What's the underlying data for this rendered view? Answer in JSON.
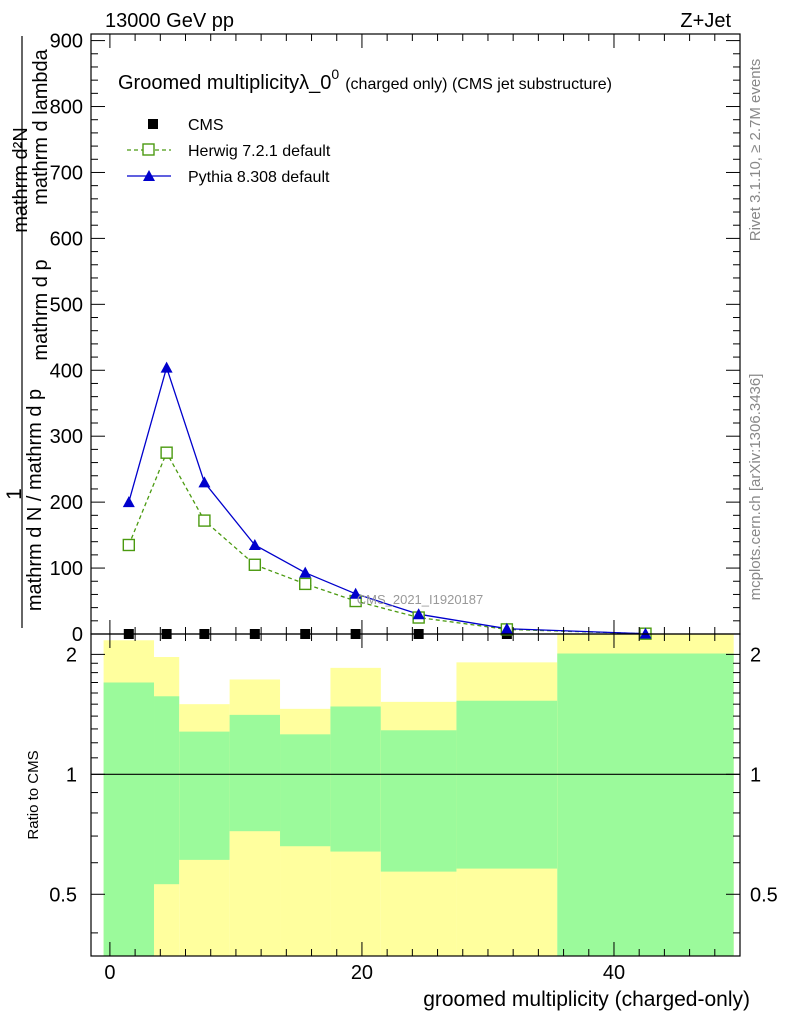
{
  "header": {
    "left_label": "13000 GeV pp",
    "right_label": "Z+Jet"
  },
  "side_labels": {
    "rivet": "Rivet 3.1.10, ≥ 2.7M events",
    "mcplots": "mcplots.cern.ch [arXiv:1306.3436]"
  },
  "chart_data": [
    {
      "type": "line",
      "title": "Groomed multiplicityλ_0",
      "title_superscript": "0",
      "title_suffix": "(charged only) (CMS jet substructure)",
      "watermark": "CMS_2021_I1920187",
      "ylabel_num": "1",
      "ylabel_den_lines": [
        "mathrm d N / mathrm d p",
        "mathrm d p",
        "mathrm d lambda"
      ],
      "ylabel_full": "mathrm d^2N / mathrm d p_T mathrm d lambda (1 / mathrm d N / mathrm d p_T)",
      "ylabel_top": "mathrm d²N",
      "ylabel_mid": "mathrm d p  mathrm d lambda",
      "ylabel_bot": "mathrm d N / mathrm d p  mathrm d p",
      "xlim": [
        -1.5,
        50
      ],
      "ylim": [
        0,
        910
      ],
      "yticks": [
        0,
        100,
        200,
        300,
        400,
        500,
        600,
        700,
        800,
        900
      ],
      "legend_position": "top-left",
      "series": [
        {
          "name": "CMS",
          "color": "#000000",
          "marker": "square-filled",
          "x": [
            1.5,
            4.5,
            7.5,
            11.5,
            15.5,
            19.5,
            24.5,
            31.5,
            42.5
          ],
          "values": [
            0,
            0,
            0,
            0,
            0,
            0,
            0,
            0,
            0
          ]
        },
        {
          "name": "Herwig 7.2.1 default",
          "color": "#4b9a10",
          "marker": "square-open",
          "dashed": true,
          "x": [
            1.5,
            4.5,
            7.5,
            11.5,
            15.5,
            19.5,
            24.5,
            31.5,
            42.5
          ],
          "values": [
            135,
            275,
            172,
            105,
            76,
            50,
            25,
            7,
            0.5
          ]
        },
        {
          "name": "Pythia 8.308 default",
          "color": "#0000cc",
          "marker": "triangle-filled",
          "dashed": false,
          "x": [
            1.5,
            4.5,
            7.5,
            11.5,
            15.5,
            19.5,
            24.5,
            31.5,
            42.5
          ],
          "values": [
            200,
            404,
            230,
            135,
            93,
            61,
            30,
            8,
            0.5
          ]
        }
      ]
    },
    {
      "type": "area",
      "ylabel": "Ratio to CMS",
      "xlabel": "groomed multiplicity (charged-only)",
      "xlim": [
        -1.5,
        50
      ],
      "ylim": [
        0.35,
        2.25
      ],
      "xticks": [
        0,
        20,
        40
      ],
      "yticks": [
        0.5,
        1,
        2
      ],
      "reference_line": 1,
      "bands": [
        {
          "name": "stat",
          "color": "#9bfa9b"
        },
        {
          "name": "total",
          "color": "#ffff9e"
        }
      ],
      "bins": [
        {
          "lo": -0.5,
          "hi": 3.5,
          "inner": [
            0.35,
            1.7
          ],
          "outer": [
            0.35,
            2.17
          ]
        },
        {
          "lo": 3.5,
          "hi": 5.5,
          "inner": [
            0.53,
            1.57
          ],
          "outer": [
            0.35,
            1.97
          ]
        },
        {
          "lo": 5.5,
          "hi": 9.5,
          "inner": [
            0.61,
            1.28
          ],
          "outer": [
            0.35,
            1.5
          ]
        },
        {
          "lo": 9.5,
          "hi": 13.5,
          "inner": [
            0.72,
            1.41
          ],
          "outer": [
            0.35,
            1.73
          ]
        },
        {
          "lo": 13.5,
          "hi": 17.5,
          "inner": [
            0.66,
            1.26
          ],
          "outer": [
            0.35,
            1.46
          ]
        },
        {
          "lo": 17.5,
          "hi": 21.5,
          "inner": [
            0.64,
            1.48
          ],
          "outer": [
            0.35,
            1.85
          ]
        },
        {
          "lo": 21.5,
          "hi": 27.5,
          "inner": [
            0.57,
            1.29
          ],
          "outer": [
            0.35,
            1.52
          ]
        },
        {
          "lo": 27.5,
          "hi": 35.5,
          "inner": [
            0.58,
            1.53
          ],
          "outer": [
            0.35,
            1.91
          ]
        },
        {
          "lo": 35.5,
          "hi": 49.5,
          "inner": [
            0.35,
            2.01
          ],
          "outer": [
            0.35,
            2.25
          ]
        }
      ]
    }
  ]
}
